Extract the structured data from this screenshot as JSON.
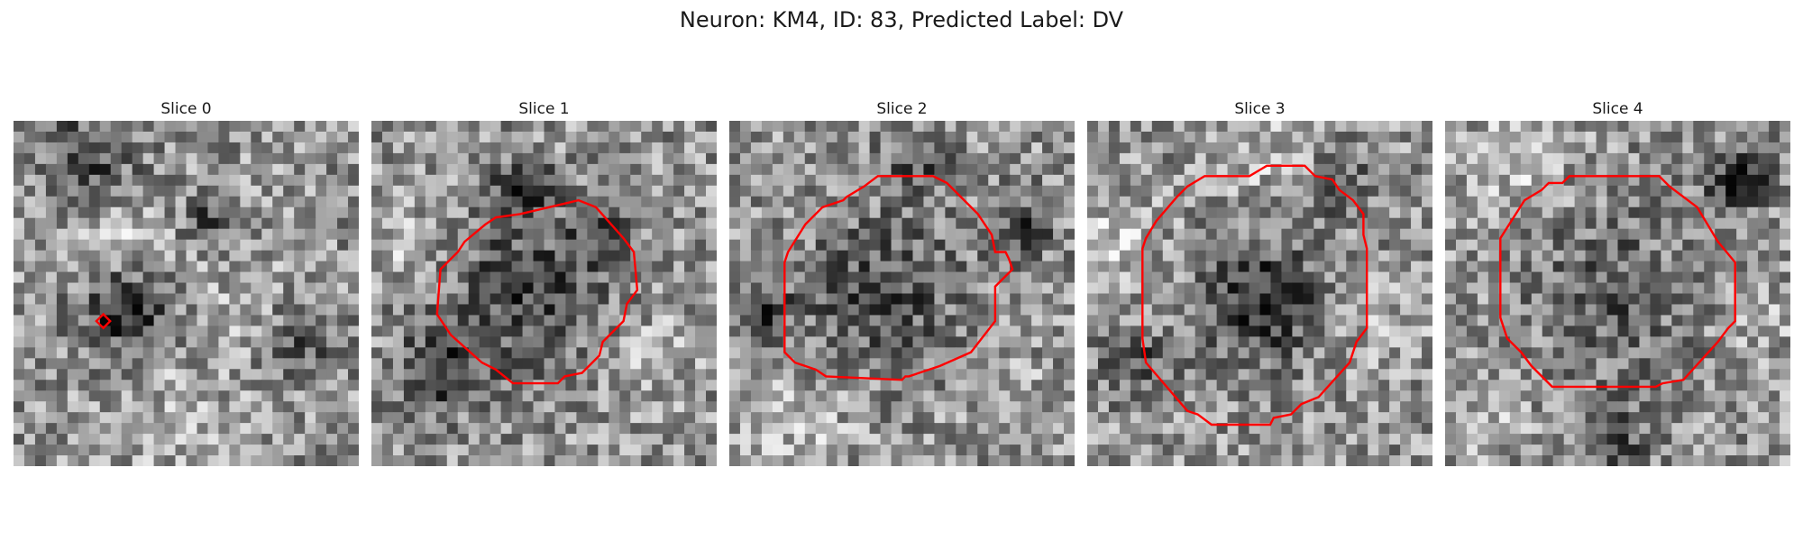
{
  "figure": {
    "title": "Neuron: KM4, ID: 83, Predicted Label: DV"
  },
  "panels": [
    {
      "title": "Slice 0",
      "seed": 11,
      "contour_color": "#ff0000",
      "dark_spots": [
        [
          0.32,
          0.55,
          0.13,
          0.9
        ],
        [
          0.22,
          0.12,
          0.14,
          0.7
        ],
        [
          0.56,
          0.28,
          0.07,
          0.6
        ],
        [
          0.82,
          0.62,
          0.12,
          0.6
        ]
      ],
      "bright_spots": [
        [
          0.28,
          0.32,
          0.15,
          0.6
        ],
        [
          0.7,
          0.55,
          0.15,
          0.5
        ],
        [
          0.45,
          0.85,
          0.18,
          0.4
        ]
      ],
      "contour": [
        [
          0.24,
          0.58
        ],
        [
          0.26,
          0.56
        ],
        [
          0.28,
          0.58
        ],
        [
          0.26,
          0.6
        ]
      ]
    },
    {
      "title": "Slice 1",
      "seed": 23,
      "contour_color": "#ff0000",
      "dark_spots": [
        [
          0.45,
          0.5,
          0.22,
          0.7
        ],
        [
          0.44,
          0.2,
          0.08,
          0.9
        ],
        [
          0.2,
          0.72,
          0.12,
          0.8
        ],
        [
          0.66,
          0.32,
          0.08,
          0.7
        ]
      ],
      "bright_spots": [
        [
          0.1,
          0.35,
          0.1,
          0.5
        ],
        [
          0.8,
          0.7,
          0.15,
          0.4
        ]
      ],
      "contour": [
        [
          0.43,
          0.27
        ],
        [
          0.6,
          0.23
        ],
        [
          0.65,
          0.25
        ],
        [
          0.73,
          0.34
        ],
        [
          0.76,
          0.38
        ],
        [
          0.77,
          0.49
        ],
        [
          0.74,
          0.53
        ],
        [
          0.73,
          0.58
        ],
        [
          0.67,
          0.64
        ],
        [
          0.66,
          0.68
        ],
        [
          0.61,
          0.73
        ],
        [
          0.56,
          0.74
        ],
        [
          0.54,
          0.76
        ],
        [
          0.41,
          0.76
        ],
        [
          0.36,
          0.72
        ],
        [
          0.32,
          0.7
        ],
        [
          0.23,
          0.62
        ],
        [
          0.19,
          0.56
        ],
        [
          0.2,
          0.43
        ],
        [
          0.25,
          0.38
        ],
        [
          0.27,
          0.35
        ],
        [
          0.33,
          0.3
        ],
        [
          0.36,
          0.28
        ]
      ]
    },
    {
      "title": "Slice 2",
      "seed": 37,
      "contour_color": "#ff0000",
      "dark_spots": [
        [
          0.45,
          0.5,
          0.22,
          0.6
        ],
        [
          0.08,
          0.55,
          0.1,
          0.7
        ],
        [
          0.85,
          0.3,
          0.1,
          0.6
        ],
        [
          0.55,
          0.12,
          0.1,
          0.5
        ]
      ],
      "bright_spots": [
        [
          0.2,
          0.88,
          0.15,
          0.5
        ],
        [
          0.8,
          0.8,
          0.12,
          0.4
        ]
      ],
      "contour": [
        [
          0.43,
          0.16
        ],
        [
          0.59,
          0.16
        ],
        [
          0.63,
          0.18
        ],
        [
          0.72,
          0.27
        ],
        [
          0.76,
          0.33
        ],
        [
          0.77,
          0.38
        ],
        [
          0.8,
          0.38
        ],
        [
          0.81,
          0.4
        ],
        [
          0.82,
          0.43
        ],
        [
          0.81,
          0.44
        ],
        [
          0.77,
          0.48
        ],
        [
          0.77,
          0.58
        ],
        [
          0.7,
          0.67
        ],
        [
          0.61,
          0.71
        ],
        [
          0.52,
          0.74
        ],
        [
          0.51,
          0.74
        ],
        [
          0.5,
          0.75
        ],
        [
          0.28,
          0.74
        ],
        [
          0.25,
          0.72
        ],
        [
          0.19,
          0.7
        ],
        [
          0.16,
          0.67
        ],
        [
          0.16,
          0.41
        ],
        [
          0.17,
          0.38
        ],
        [
          0.22,
          0.3
        ],
        [
          0.27,
          0.25
        ],
        [
          0.33,
          0.23
        ],
        [
          0.34,
          0.22
        ],
        [
          0.39,
          0.19
        ]
      ]
    },
    {
      "title": "Slice 3",
      "seed": 41,
      "contour_color": "#ff0000",
      "dark_spots": [
        [
          0.5,
          0.52,
          0.16,
          1.0
        ],
        [
          0.14,
          0.7,
          0.1,
          0.6
        ],
        [
          0.75,
          0.2,
          0.1,
          0.4
        ]
      ],
      "bright_spots": [
        [
          0.08,
          0.35,
          0.12,
          0.7
        ],
        [
          0.5,
          0.1,
          0.15,
          0.4
        ],
        [
          0.85,
          0.6,
          0.12,
          0.4
        ]
      ],
      "contour": [
        [
          0.52,
          0.13
        ],
        [
          0.63,
          0.13
        ],
        [
          0.66,
          0.16
        ],
        [
          0.71,
          0.17
        ],
        [
          0.73,
          0.2
        ],
        [
          0.77,
          0.23
        ],
        [
          0.8,
          0.27
        ],
        [
          0.8,
          0.33
        ],
        [
          0.81,
          0.37
        ],
        [
          0.81,
          0.6
        ],
        [
          0.78,
          0.64
        ],
        [
          0.76,
          0.7
        ],
        [
          0.67,
          0.8
        ],
        [
          0.62,
          0.82
        ],
        [
          0.59,
          0.85
        ],
        [
          0.54,
          0.86
        ],
        [
          0.53,
          0.88
        ],
        [
          0.36,
          0.88
        ],
        [
          0.32,
          0.85
        ],
        [
          0.29,
          0.84
        ],
        [
          0.17,
          0.7
        ],
        [
          0.16,
          0.63
        ],
        [
          0.16,
          0.37
        ],
        [
          0.17,
          0.34
        ],
        [
          0.2,
          0.29
        ],
        [
          0.26,
          0.22
        ],
        [
          0.29,
          0.19
        ],
        [
          0.34,
          0.16
        ],
        [
          0.35,
          0.16
        ],
        [
          0.47,
          0.16
        ]
      ]
    },
    {
      "title": "Slice 4",
      "seed": 53,
      "contour_color": "#ff0000",
      "dark_spots": [
        [
          0.85,
          0.17,
          0.09,
          1.0
        ],
        [
          0.48,
          0.5,
          0.22,
          0.5
        ],
        [
          0.5,
          0.92,
          0.12,
          0.5
        ]
      ],
      "bright_spots": [
        [
          0.2,
          0.1,
          0.15,
          0.6
        ],
        [
          0.1,
          0.85,
          0.12,
          0.4
        ],
        [
          0.92,
          0.6,
          0.1,
          0.3
        ]
      ],
      "contour": [
        [
          0.36,
          0.16
        ],
        [
          0.62,
          0.16
        ],
        [
          0.65,
          0.19
        ],
        [
          0.73,
          0.25
        ],
        [
          0.79,
          0.35
        ],
        [
          0.84,
          0.41
        ],
        [
          0.84,
          0.58
        ],
        [
          0.82,
          0.6
        ],
        [
          0.79,
          0.64
        ],
        [
          0.69,
          0.75
        ],
        [
          0.63,
          0.76
        ],
        [
          0.61,
          0.77
        ],
        [
          0.31,
          0.77
        ],
        [
          0.25,
          0.71
        ],
        [
          0.22,
          0.67
        ],
        [
          0.18,
          0.63
        ],
        [
          0.16,
          0.57
        ],
        [
          0.16,
          0.34
        ],
        [
          0.23,
          0.23
        ],
        [
          0.28,
          0.2
        ],
        [
          0.3,
          0.18
        ],
        [
          0.34,
          0.18
        ]
      ]
    }
  ]
}
